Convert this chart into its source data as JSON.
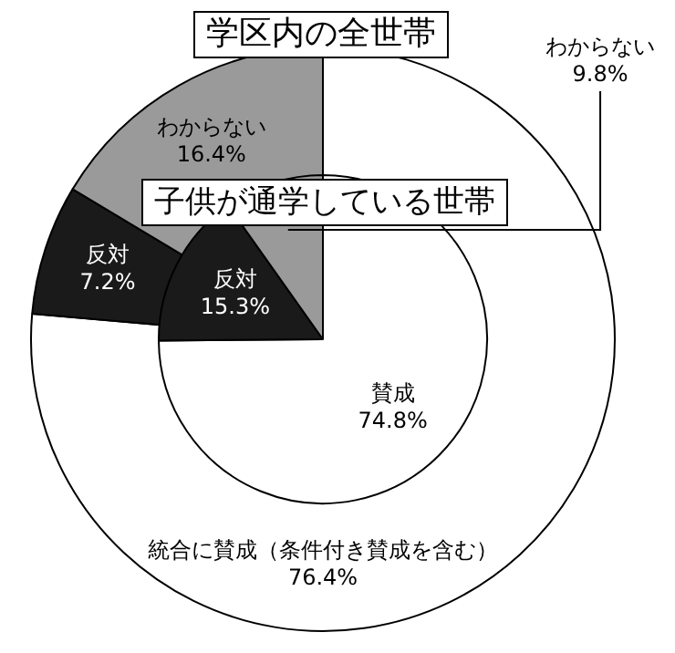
{
  "chart_data": [
    {
      "type": "donut",
      "title": "学区内の全世帯",
      "categories": [
        "統合に賛成（条件付き賛成を含む）",
        "反対",
        "わからない"
      ],
      "values": [
        76.4,
        7.2,
        16.4
      ],
      "colors": [
        "#ffffff",
        "#1a1a1a",
        "#9a9a9a"
      ],
      "value_labels": [
        "76.4%",
        "7.2%",
        "16.4%"
      ]
    },
    {
      "type": "pie",
      "title": "子供が通学している世帯",
      "categories": [
        "賛成",
        "反対",
        "わからない"
      ],
      "values": [
        74.8,
        15.3,
        9.8
      ],
      "colors": [
        "#ffffff",
        "#1a1a1a",
        "#9a9a9a"
      ],
      "value_labels": [
        "74.8%",
        "15.3%",
        "9.8%"
      ]
    }
  ]
}
